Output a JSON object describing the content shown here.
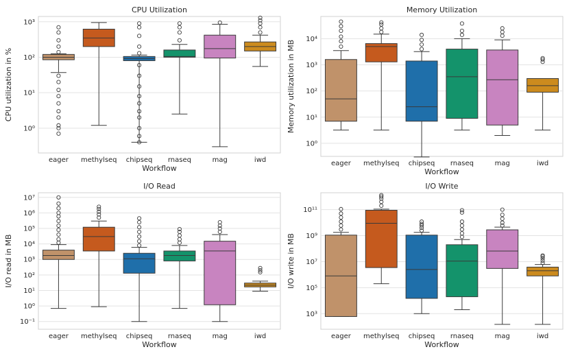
{
  "chart_data": [
    {
      "type": "box",
      "title": "CPU Utilization",
      "xlabel": "Workflow",
      "ylabel": "CPU utilization in %",
      "yscale": "log",
      "ylim_log10": [
        -0.7,
        3.15
      ],
      "yticks": [
        {
          "exp": 0,
          "label": "10⁰"
        },
        {
          "exp": 1,
          "label": "10¹"
        },
        {
          "exp": 2,
          "label": "10²"
        },
        {
          "exp": 3,
          "label": "10³"
        }
      ],
      "categories": [
        "eager",
        "methylseq",
        "chipseq",
        "rnaseq",
        "mag",
        "iwd"
      ],
      "boxes": [
        {
          "name": "eager",
          "color": "#c0926a",
          "wlo": 37,
          "q1": 85,
          "med": 100,
          "q3": 120,
          "whi": 125,
          "outliers": [
            0.7,
            1.0,
            1.2,
            2,
            3,
            5,
            8,
            12,
            20,
            30,
            140,
            200,
            300,
            500,
            700
          ]
        },
        {
          "name": "methylseq",
          "color": "#c55a1e",
          "wlo": 1.2,
          "q1": 200,
          "med": 350,
          "q3": 620,
          "whi": 950,
          "outliers": []
        },
        {
          "name": "chipseq",
          "color": "#1f6faa",
          "wlo": 0.4,
          "q1": 80,
          "med": 92,
          "q3": 105,
          "whi": 115,
          "outliers": [
            0.4,
            0.6,
            1.0,
            2,
            3,
            5,
            8,
            15,
            30,
            60,
            130,
            200,
            400,
            700,
            900
          ]
        },
        {
          "name": "rnaseq",
          "color": "#14936b",
          "wlo": 2.5,
          "q1": 100,
          "med": 105,
          "q3": 160,
          "whi": 230,
          "outliers": [
            300,
            500,
            700,
            900
          ]
        },
        {
          "name": "mag",
          "color": "#c884c0",
          "wlo": 0.3,
          "q1": 95,
          "med": 175,
          "q3": 420,
          "whi": 850,
          "outliers": [
            950
          ]
        },
        {
          "name": "iwd",
          "color": "#cc8b1e",
          "wlo": 55,
          "q1": 150,
          "med": 200,
          "q3": 270,
          "whi": 420,
          "outliers": [
            500,
            700,
            900,
            1100,
            1300
          ]
        }
      ]
    },
    {
      "type": "box",
      "title": "Memory Utilization",
      "xlabel": "Workflow",
      "ylabel": "Memory utilization in MB",
      "yscale": "log",
      "ylim_log10": [
        -0.5,
        4.85
      ],
      "yticks": [
        {
          "exp": 0,
          "label": "10⁰"
        },
        {
          "exp": 1,
          "label": "10¹"
        },
        {
          "exp": 2,
          "label": "10²"
        },
        {
          "exp": 3,
          "label": "10³"
        },
        {
          "exp": 4,
          "label": "10⁴"
        }
      ],
      "categories": [
        "eager",
        "methylseq",
        "chipseq",
        "rnaseq",
        "mag",
        "iwd"
      ],
      "boxes": [
        {
          "name": "eager",
          "color": "#c0926a",
          "wlo": 3.2,
          "q1": 7,
          "med": 50,
          "q3": 1600,
          "whi": 3500,
          "outliers": [
            5000,
            8000,
            12000,
            20000,
            30000,
            45000
          ]
        },
        {
          "name": "methylseq",
          "color": "#c55a1e",
          "wlo": 3.2,
          "q1": 1300,
          "med": 5000,
          "q3": 6500,
          "whi": 15000,
          "outliers": [
            18000,
            25000,
            35000,
            42000
          ]
        },
        {
          "name": "chipseq",
          "color": "#1f6faa",
          "wlo": 0.3,
          "q1": 7,
          "med": 25,
          "q3": 1400,
          "whi": 3200,
          "outliers": [
            4000,
            6000,
            9000,
            14000
          ]
        },
        {
          "name": "rnaseq",
          "color": "#14936b",
          "wlo": 3.2,
          "q1": 9,
          "med": 350,
          "q3": 4000,
          "whi": 10000,
          "outliers": [
            14000,
            20000,
            38000
          ]
        },
        {
          "name": "mag",
          "color": "#c884c0",
          "wlo": 2,
          "q1": 5,
          "med": 270,
          "q3": 3700,
          "whi": 9000,
          "outliers": [
            13000,
            18000,
            25000
          ]
        },
        {
          "name": "iwd",
          "color": "#cc8b1e",
          "wlo": 3.2,
          "q1": 90,
          "med": 160,
          "q3": 300,
          "whi": 300,
          "outliers": [
            1300,
            1600,
            1800
          ]
        }
      ]
    },
    {
      "type": "box",
      "title": "I/O Read",
      "xlabel": "Workflow",
      "ylabel": "I/O read in MB",
      "yscale": "log",
      "ylim_log10": [
        -1.5,
        7.3
      ],
      "yticks": [
        {
          "exp": -1,
          "label": "10⁻¹"
        },
        {
          "exp": 0,
          "label": "10⁰"
        },
        {
          "exp": 1,
          "label": "10¹"
        },
        {
          "exp": 2,
          "label": "10²"
        },
        {
          "exp": 3,
          "label": "10³"
        },
        {
          "exp": 4,
          "label": "10⁴"
        },
        {
          "exp": 5,
          "label": "10⁵"
        },
        {
          "exp": 6,
          "label": "10⁶"
        },
        {
          "exp": 7,
          "label": "10⁷"
        }
      ],
      "categories": [
        "eager",
        "methylseq",
        "chipseq",
        "rnaseq",
        "mag",
        "iwd"
      ],
      "boxes": [
        {
          "name": "eager",
          "color": "#c0926a",
          "wlo": 0.7,
          "q1": 1000,
          "med": 1800,
          "q3": 4000,
          "whi": 9000,
          "outliers": [
            12000,
            20000,
            40000,
            80000,
            150000,
            300000,
            600000,
            1000000,
            2000000,
            4000000,
            10000000
          ]
        },
        {
          "name": "methylseq",
          "color": "#c55a1e",
          "wlo": 0.9,
          "q1": 3500,
          "med": 30000,
          "q3": 120000,
          "whi": 300000,
          "outliers": [
            500000,
            800000,
            1200000,
            1800000,
            2500000
          ]
        },
        {
          "name": "chipseq",
          "color": "#1f6faa",
          "wlo": 0.1,
          "q1": 130,
          "med": 1100,
          "q3": 2500,
          "whi": 6000,
          "outliers": [
            8000,
            15000,
            30000,
            60000,
            120000,
            250000,
            450000
          ]
        },
        {
          "name": "rnaseq",
          "color": "#14936b",
          "wlo": 0.7,
          "q1": 800,
          "med": 1800,
          "q3": 3500,
          "whi": 8000,
          "outliers": [
            12000,
            20000,
            35000,
            60000,
            90000
          ]
        },
        {
          "name": "mag",
          "color": "#c884c0",
          "wlo": 0.1,
          "q1": 1.2,
          "med": 3500,
          "q3": 15000,
          "whi": 40000,
          "outliers": [
            60000,
            100000,
            150000,
            250000
          ]
        },
        {
          "name": "iwd",
          "color": "#cc8b1e",
          "wlo": 9,
          "q1": 17,
          "med": 22,
          "q3": 30,
          "whi": 40,
          "outliers": [
            150,
            200,
            280
          ]
        }
      ]
    },
    {
      "type": "box",
      "title": "I/O Write",
      "xlabel": "Workflow",
      "ylabel": "I/O write in MB",
      "yscale": "log",
      "ylim_log10": [
        1.8,
        12.3
      ],
      "yticks": [
        {
          "exp": 3,
          "label": "10³"
        },
        {
          "exp": 5,
          "label": "10⁵"
        },
        {
          "exp": 7,
          "label": "10⁷"
        },
        {
          "exp": 9,
          "label": "10⁹"
        },
        {
          "exp": 11,
          "label": "10¹¹"
        }
      ],
      "categories": [
        "eager",
        "methylseq",
        "chipseq",
        "rnaseq",
        "mag",
        "iwd"
      ],
      "boxes": [
        {
          "name": "eager",
          "color": "#c0926a",
          "wlo": 600,
          "q1": 600,
          "med": 800000,
          "q3": 1100000000,
          "whi": 1800000000,
          "outliers": [
            3000000000,
            6000000000,
            12000000000,
            25000000000,
            50000000000,
            110000000000
          ]
        },
        {
          "name": "methylseq",
          "color": "#c55a1e",
          "wlo": 200000,
          "q1": 3500000,
          "med": 9000000000,
          "q3": 90000000000,
          "whi": 110000000000,
          "outliers": [
            200000000000,
            400000000000,
            700000000000,
            1000000000000,
            1300000000000
          ]
        },
        {
          "name": "chipseq",
          "color": "#1f6faa",
          "wlo": 1000,
          "q1": 15000,
          "med": 2500000,
          "q3": 1100000000,
          "whi": 1800000000,
          "outliers": [
            2500000000,
            4000000000,
            6000000000,
            8000000000,
            12000000000
          ]
        },
        {
          "name": "rnaseq",
          "color": "#14936b",
          "wlo": 2000,
          "q1": 20000,
          "med": 11000000,
          "q3": 200000000,
          "whi": 500000000,
          "outliers": [
            800000000,
            1500000000,
            3000000000,
            6000000000,
            12000000000,
            60000000000,
            90000000000
          ]
        },
        {
          "name": "mag",
          "color": "#c884c0",
          "wlo": 150,
          "q1": 3000000,
          "med": 65000000,
          "q3": 2800000000,
          "whi": 4500000000,
          "outliers": [
            6000000000,
            10000000000,
            20000000000,
            40000000000,
            100000000000
          ]
        },
        {
          "name": "iwd",
          "color": "#cc8b1e",
          "wlo": 150,
          "q1": 800000,
          "med": 2000000,
          "q3": 3800000,
          "whi": 6000000,
          "outliers": [
            8000000,
            12000000,
            18000000,
            25000000,
            30000000
          ]
        }
      ]
    }
  ]
}
